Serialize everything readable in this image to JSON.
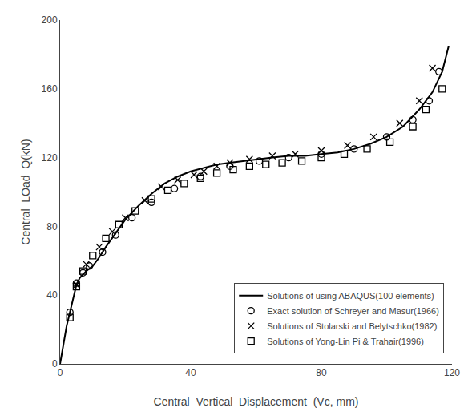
{
  "chart_data": {
    "type": "line",
    "title": "",
    "xlabel": "Central  Vertical  Displacement  (Vc, mm)",
    "ylabel": "Central  LOad  Q(kN)",
    "xlim": [
      0,
      120
    ],
    "ylim": [
      0,
      200
    ],
    "xticks": [
      0,
      40,
      80,
      120
    ],
    "yticks": [
      0,
      40,
      80,
      120,
      160,
      200
    ],
    "grid": false,
    "legend": "lower right",
    "series": [
      {
        "name": "Solutions of using ABAQUS(100 elements)",
        "type": "line",
        "line_style": "solid",
        "color": "#000000",
        "x": [
          0,
          1,
          2,
          3,
          4,
          5,
          6,
          7,
          8,
          10,
          12,
          14,
          17,
          20,
          24,
          28,
          32,
          36,
          40,
          44,
          48,
          52,
          56,
          60,
          65,
          70,
          75,
          80,
          85,
          90,
          95,
          100,
          105,
          110,
          114,
          117,
          119
        ],
        "values": [
          0,
          12,
          22,
          30,
          38,
          46,
          50,
          52,
          54,
          57,
          62,
          68,
          76,
          84,
          92,
          99,
          105,
          109,
          112,
          114,
          116,
          117,
          118,
          119,
          120,
          121,
          121,
          122,
          123,
          125,
          128,
          132,
          138,
          148,
          158,
          170,
          185
        ]
      },
      {
        "name": "Exact solution of Schreyer and Masur(1966)",
        "type": "scatter",
        "marker": "circle-open",
        "color": "#000000",
        "x": [
          3,
          5,
          7,
          9,
          13,
          17,
          22,
          28,
          35,
          43,
          52,
          61,
          70,
          80,
          90,
          100,
          108,
          113,
          116
        ],
        "values": [
          30,
          47,
          53,
          57,
          65,
          75,
          85,
          94,
          102,
          109,
          115,
          118,
          120,
          122,
          125,
          132,
          142,
          153,
          170
        ]
      },
      {
        "name": "Solutions of Stolarski and Belytschko(1982)",
        "type": "scatter",
        "marker": "x-thin-open",
        "color": "#000000",
        "x": [
          5,
          8,
          12,
          16,
          20,
          26,
          31,
          36,
          41,
          44,
          48,
          52,
          58,
          65,
          72,
          80,
          88,
          96,
          104,
          110,
          114
        ],
        "values": [
          46,
          58,
          68,
          77,
          85,
          95,
          103,
          107,
          110,
          112,
          115,
          117,
          119,
          121,
          122,
          124,
          127,
          132,
          140,
          153,
          172
        ]
      },
      {
        "name": "Solutions of Yong-Lin Pi & Trahair(1996)",
        "type": "scatter",
        "marker": "square-open",
        "color": "#000000",
        "x": [
          3,
          5,
          7,
          10,
          14,
          18,
          23,
          28,
          33,
          38,
          43,
          48,
          53,
          58,
          63,
          68,
          74,
          80,
          87,
          94,
          101,
          108,
          112,
          117
        ],
        "values": [
          27,
          45,
          54,
          63,
          73,
          81,
          89,
          96,
          101,
          105,
          108,
          111,
          113,
          115,
          116,
          117,
          118,
          120,
          122,
          125,
          129,
          138,
          148,
          160
        ]
      }
    ]
  }
}
